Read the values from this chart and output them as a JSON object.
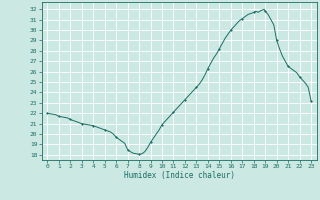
{
  "title": "",
  "xlabel": "Humidex (Indice chaleur)",
  "ylabel": "",
  "background_color": "#cce8e2",
  "grid_color": "#ffffff",
  "line_color": "#1a6e64",
  "marker_color": "#1a6e64",
  "xlim": [
    -0.5,
    23.5
  ],
  "ylim": [
    17.5,
    32.7
  ],
  "yticks": [
    18,
    19,
    20,
    21,
    22,
    23,
    24,
    25,
    26,
    27,
    28,
    29,
    30,
    31,
    32
  ],
  "xticks": [
    0,
    1,
    2,
    3,
    4,
    5,
    6,
    7,
    8,
    9,
    10,
    11,
    12,
    13,
    14,
    15,
    16,
    17,
    18,
    19,
    20,
    21,
    22,
    23
  ],
  "hours": [
    0,
    0.25,
    0.5,
    0.75,
    1,
    1.25,
    1.5,
    1.75,
    2,
    2.25,
    2.5,
    2.75,
    3,
    3.25,
    3.5,
    3.75,
    4,
    4.25,
    4.5,
    4.75,
    5,
    5.25,
    5.5,
    5.75,
    6,
    6.25,
    6.5,
    6.75,
    7,
    7.25,
    7.5,
    7.75,
    8,
    8.25,
    8.5,
    8.75,
    9,
    9.25,
    9.5,
    9.75,
    10,
    10.25,
    10.5,
    10.75,
    11,
    11.25,
    11.5,
    11.75,
    12,
    12.25,
    12.5,
    12.75,
    13,
    13.25,
    13.5,
    13.75,
    14,
    14.25,
    14.5,
    14.75,
    15,
    15.25,
    15.5,
    15.75,
    16,
    16.25,
    16.5,
    16.75,
    17,
    17.25,
    17.5,
    17.75,
    18,
    18.1,
    18.2,
    18.3,
    18.4,
    18.5,
    18.6,
    18.7,
    18.8,
    18.9,
    19,
    19.25,
    19.5,
    19.75,
    20,
    20.25,
    20.5,
    20.75,
    21,
    21.25,
    21.5,
    21.75,
    22,
    22.25,
    22.5,
    22.75,
    23
  ],
  "values": [
    22.0,
    21.95,
    21.9,
    21.85,
    21.7,
    21.65,
    21.6,
    21.55,
    21.4,
    21.3,
    21.2,
    21.1,
    21.0,
    20.95,
    20.9,
    20.85,
    20.8,
    20.7,
    20.6,
    20.5,
    20.4,
    20.3,
    20.2,
    20.0,
    19.7,
    19.5,
    19.3,
    19.1,
    18.5,
    18.3,
    18.15,
    18.1,
    18.05,
    18.1,
    18.3,
    18.7,
    19.2,
    19.6,
    20.0,
    20.4,
    20.9,
    21.2,
    21.5,
    21.8,
    22.1,
    22.4,
    22.7,
    23.0,
    23.3,
    23.6,
    23.9,
    24.2,
    24.5,
    24.8,
    25.2,
    25.7,
    26.3,
    26.8,
    27.3,
    27.7,
    28.2,
    28.7,
    29.2,
    29.6,
    30.0,
    30.3,
    30.6,
    30.9,
    31.1,
    31.3,
    31.5,
    31.6,
    31.7,
    31.75,
    31.8,
    31.75,
    31.7,
    31.8,
    31.85,
    31.9,
    31.95,
    32.0,
    31.8,
    31.5,
    31.0,
    30.5,
    29.0,
    28.2,
    27.5,
    27.0,
    26.5,
    26.3,
    26.1,
    25.9,
    25.5,
    25.2,
    24.9,
    24.5,
    23.2
  ],
  "marker_hours": [
    0,
    1,
    2,
    3,
    4,
    5,
    6,
    7,
    8,
    9,
    10,
    11,
    12,
    13,
    14,
    15,
    16,
    17,
    18,
    19,
    20,
    21,
    22,
    23
  ],
  "marker_values": [
    22.0,
    21.7,
    21.4,
    21.0,
    20.8,
    20.4,
    19.7,
    18.5,
    18.05,
    19.2,
    20.9,
    22.1,
    23.3,
    24.5,
    26.3,
    28.2,
    30.0,
    31.1,
    31.7,
    31.8,
    29.0,
    26.5,
    25.5,
    23.2
  ],
  "figsize": [
    3.2,
    2.0
  ],
  "dpi": 100
}
